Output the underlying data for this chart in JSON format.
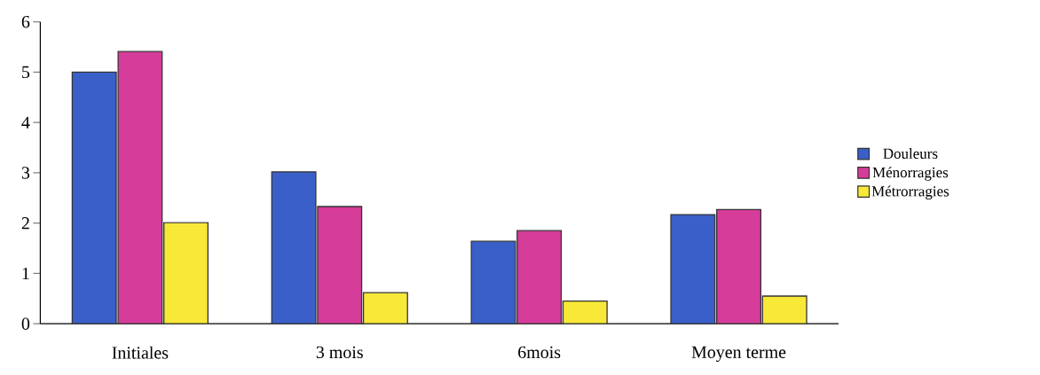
{
  "chart_data": {
    "type": "bar",
    "categories": [
      "Initiales",
      "3 mois",
      "6mois",
      "Moyen terme"
    ],
    "series": [
      {
        "name": "Douleurs",
        "color": "#3a5fc8",
        "values": [
          5.0,
          3.02,
          1.64,
          2.17
        ]
      },
      {
        "name": "Ménorragies",
        "color": "#d63c9a",
        "values": [
          5.41,
          2.33,
          1.85,
          2.27
        ]
      },
      {
        "name": "Métrorragies",
        "color": "#f8e838",
        "values": [
          2.01,
          0.62,
          0.45,
          0.55
        ]
      }
    ],
    "ylim": [
      0,
      6
    ],
    "yticks": [
      0,
      1,
      2,
      3,
      4,
      5,
      6
    ],
    "grid": false,
    "legend": "right"
  }
}
